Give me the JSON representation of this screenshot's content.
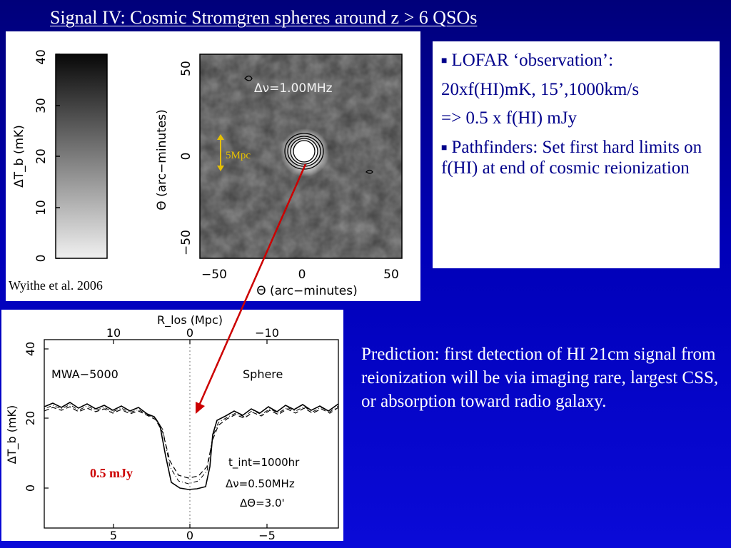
{
  "slide": {
    "title": "Signal IV: Cosmic Stromgren spheres around z > 6 QSOs"
  },
  "top_figure": {
    "colorbar_ticks": [
      "0",
      "10",
      "20",
      "30",
      "40"
    ],
    "colorbar_label": "ΔT_b (mK)",
    "map_label": "Δν=1.00MHz",
    "y_ticks": [
      "50",
      "0",
      "−50"
    ],
    "x_ticks": [
      "−50",
      "0",
      "50"
    ],
    "y_label": "Θ (arc−minutes)",
    "x_label": "Θ (arc−minutes)",
    "scale_label": "5Mpc",
    "credit": "Wyithe et al. 2006"
  },
  "bottom_figure": {
    "top_axis_label": "R_los (Mpc)",
    "top_ticks": [
      "10",
      "0",
      "−10"
    ],
    "bottom_ticks": [
      "5",
      "0",
      "−5"
    ],
    "y_ticks": [
      "40",
      "20",
      "0"
    ],
    "y_label": "ΔT_b (mK)",
    "left_label": "MWA−5000",
    "right_label": "Sphere",
    "param_1": "t_int=1000hr",
    "param_2": "Δν=0.50MHz",
    "param_3": "ΔΘ=3.0'",
    "flux_label": "0.5 mJy"
  },
  "infobox": {
    "bullet_1": "LOFAR ‘observation’:",
    "line_2": "20xf(HI)mK, 15’,1000km/s",
    "line_3": "=> 0.5 x f(HI) mJy",
    "bullet_2": "Pathfinders: Set first hard limits on f(HI) at end of cosmic reionization"
  },
  "prediction": {
    "text": "Prediction: first detection of HI 21cm signal from reionization will be via imaging rare, largest CSS,  or absorption toward radio galaxy."
  },
  "colors": {
    "background": "#0000b8",
    "arrow": "#cc0000",
    "scale_bar": "#e6c000",
    "infobox_text": "#00008b"
  }
}
